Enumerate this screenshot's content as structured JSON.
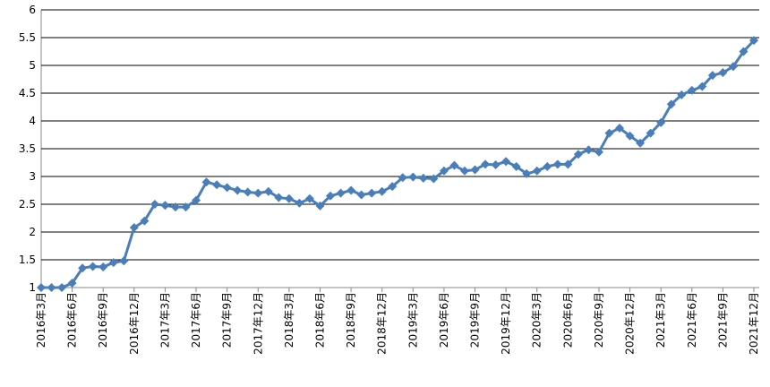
{
  "chart_data": {
    "type": "line",
    "categories": [
      "2016年3月",
      null,
      null,
      "2016年6月",
      null,
      null,
      "2016年9月",
      null,
      null,
      "2016年12月",
      null,
      null,
      "2017年3月",
      null,
      null,
      "2017年6月",
      null,
      null,
      "2017年9月",
      null,
      null,
      "2017年12月",
      null,
      null,
      "2018年3月",
      null,
      null,
      "2018年6月",
      null,
      null,
      "2018年9月",
      null,
      null,
      "2018年12月",
      null,
      null,
      "2019年3月",
      null,
      null,
      "2019年6月",
      null,
      null,
      "2019年9月",
      null,
      null,
      "2019年12月",
      null,
      null,
      "2020年3月",
      null,
      null,
      "2020年6月",
      null,
      null,
      "2020年9月",
      null,
      null,
      "2020年12月",
      null,
      null,
      "2021年3月",
      null,
      null,
      "2021年6月",
      null,
      null,
      "2021年9月",
      null,
      null,
      "2021年12月"
    ],
    "values": [
      1.0,
      1.0,
      1.0,
      1.08,
      1.35,
      1.38,
      1.37,
      1.45,
      1.48,
      2.08,
      2.2,
      2.5,
      2.48,
      2.45,
      2.45,
      2.57,
      2.9,
      2.85,
      2.8,
      2.75,
      2.72,
      2.7,
      2.73,
      2.62,
      2.6,
      2.52,
      2.6,
      2.47,
      2.65,
      2.7,
      2.75,
      2.67,
      2.7,
      2.73,
      2.82,
      2.98,
      2.99,
      2.97,
      2.96,
      3.1,
      3.2,
      3.1,
      3.12,
      3.22,
      3.21,
      3.27,
      3.18,
      3.05,
      3.1,
      3.18,
      3.22,
      3.22,
      3.4,
      3.48,
      3.44,
      3.78,
      3.87,
      3.73,
      3.6,
      3.78,
      3.97,
      4.3,
      4.47,
      4.55,
      4.62,
      4.82,
      4.87,
      4.98,
      5.25,
      5.45
    ],
    "color": "#4a7ebb",
    "ylim": [
      1,
      6
    ],
    "yticks": [
      1,
      1.5,
      2,
      2.5,
      3,
      3.5,
      4,
      4.5,
      5,
      5.5,
      6
    ],
    "grid": true
  }
}
